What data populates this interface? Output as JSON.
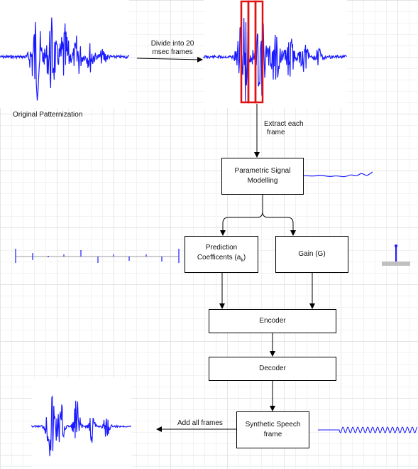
{
  "labels": {
    "original": "Original Patternization",
    "divide_line1": "Divide  into 20",
    "divide_line2": "msec frames",
    "extract_line1": "Extract each",
    "extract_line2": "frame",
    "add_frames": "Add all frames"
  },
  "boxes": {
    "parametric_line1": "Parametric Signal",
    "parametric_line2": "Modelling",
    "prediction_line1": "Prediction",
    "prediction_line2": "Coefficents (a",
    "prediction_sub": "k",
    "prediction_end": ")",
    "gain": "Gain (G)",
    "encoder": "Encoder",
    "decoder": "Decoder",
    "synthetic_line1": "Synthetic Speech",
    "synthetic_line2": "frame"
  },
  "colors": {
    "signal": "#1a1aff",
    "frame_highlight": "#e01010",
    "arrow": "#000000"
  }
}
